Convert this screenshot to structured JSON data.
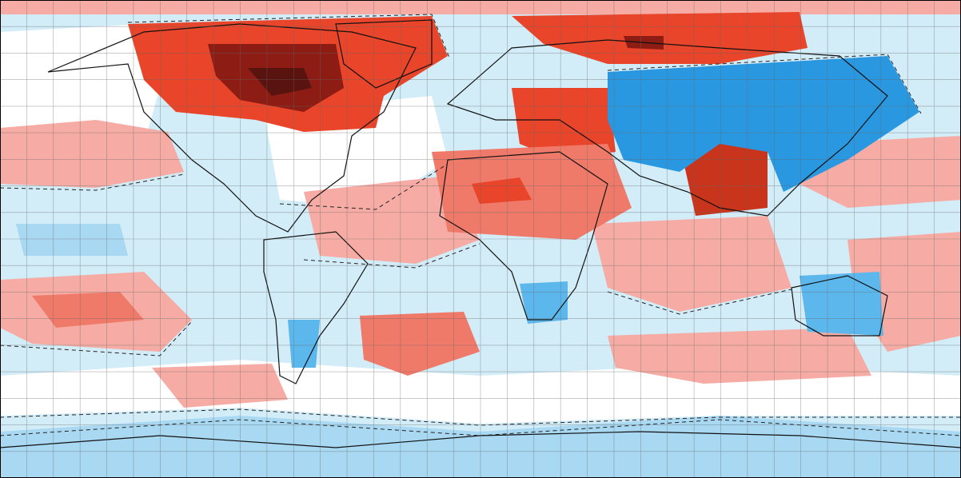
{
  "map": {
    "projection": "equirectangular",
    "graticule_spacing_degrees": 10,
    "colors": {
      "strong_warm_dark": "#5a1410",
      "strong_warm": "#8c1c14",
      "warm_3": "#c8341c",
      "warm_2": "#e8452a",
      "warm_1": "#f07a6a",
      "warm_light": "#f6aca4",
      "neutral": "#ffffff",
      "cool_light": "#d2ecf8",
      "cool_1": "#a8d8f2",
      "cool_2": "#5cb8ec",
      "cool_3": "#2a98e0",
      "coastline": "#111111",
      "grid": "#666666",
      "frame": "#000000"
    },
    "anomaly_regions": [
      {
        "name": "north-america-arctic-warm",
        "level": "warm_2"
      },
      {
        "name": "hudson-bay-core",
        "level": "strong_warm"
      },
      {
        "name": "siberia-warm",
        "level": "warm_2"
      },
      {
        "name": "eastern-europe-warm",
        "level": "warm_2"
      },
      {
        "name": "sahara-warm",
        "level": "warm_1"
      },
      {
        "name": "tibet-india-warm",
        "level": "warm_3"
      },
      {
        "name": "central-asia-cold",
        "level": "cool_3"
      },
      {
        "name": "southern-africa-cold",
        "level": "cool_2"
      },
      {
        "name": "australia-cold",
        "level": "cool_2"
      },
      {
        "name": "south-atlantic-warm",
        "level": "warm_1"
      },
      {
        "name": "antarctic-cold",
        "level": "cool_1"
      }
    ]
  }
}
